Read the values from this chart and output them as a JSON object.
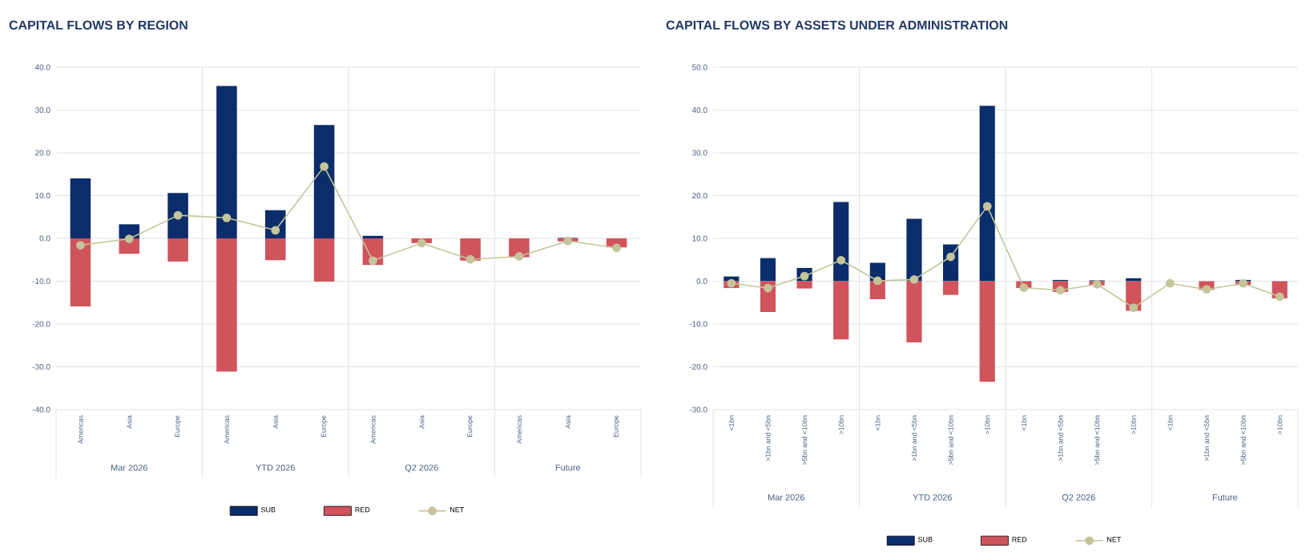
{
  "chart_data": [
    {
      "type": "bar",
      "title": "CAPITAL FLOWS BY REGION",
      "categories": [
        "Americas",
        "Asia",
        "Europe",
        "Americas",
        "Asia",
        "Europe",
        "Americas",
        "Asia",
        "Europe",
        "Americas",
        "Asia",
        "Europe"
      ],
      "series": [
        {
          "name": "SUB",
          "color": "#0b2d6b",
          "values": [
            14.0,
            3.3,
            10.6,
            35.6,
            6.6,
            26.5,
            0.6,
            null,
            null,
            null,
            0.1,
            null
          ]
        },
        {
          "name": "RED",
          "color": "#d0545c",
          "values": [
            -15.9,
            -3.6,
            -5.4,
            -31.1,
            -5.1,
            -10.1,
            -6.2,
            -1.1,
            -5.2,
            -4.4,
            -0.7,
            -2.1
          ]
        },
        {
          "name": "NET",
          "type": "line",
          "color": "#c5c49a",
          "marker": "circle",
          "values": [
            -1.6,
            -0.1,
            5.4,
            4.8,
            1.9,
            16.8,
            -5.2,
            -1.1,
            -4.9,
            -4.2,
            -0.6,
            -2.2
          ]
        }
      ],
      "stacked": true,
      "grid": "y",
      "legend": "bottom",
      "ylim": [
        -40,
        40
      ],
      "yticks": [
        {
          "value": -40,
          "label": "-40.0"
        },
        {
          "value": -30,
          "label": "-30.0"
        },
        {
          "value": -20,
          "label": "-20.0"
        },
        {
          "value": -10,
          "label": "-10.0"
        },
        {
          "value": 0,
          "label": "0.0"
        },
        {
          "value": 10,
          "label": "10.0"
        },
        {
          "value": 20,
          "label": "20.0"
        },
        {
          "value": 30,
          "label": "30.0"
        },
        {
          "value": 40,
          "label": "40.0"
        }
      ],
      "annotations": [
        "Mar 2026",
        "YTD 2026",
        "Q2 2026",
        "Future"
      ]
    },
    {
      "type": "bar",
      "title": "CAPITAL FLOWS BY ASSETS UNDER ADMINISTRATION",
      "categories": [
        "<1bn",
        ">1bn and <5bn",
        ">5bn and <10bn",
        ">10bn",
        "<1bn",
        ">1bn and <5bn",
        ">5bn and <10bn",
        ">10bn",
        "<1bn",
        ">1bn and <5bn",
        ">5bn and <10bn",
        ">10bn",
        "<1bn",
        ">1bn and <5bn",
        ">5bn and <10bn",
        ">10bn"
      ],
      "series": [
        {
          "name": "SUB",
          "color": "#0b2d6b",
          "values": [
            1.1,
            5.4,
            3.1,
            18.5,
            4.3,
            14.6,
            8.6,
            41.0,
            null,
            0.3,
            0.2,
            0.7,
            null,
            null,
            0.3,
            null
          ]
        },
        {
          "name": "RED",
          "color": "#d0545c",
          "values": [
            -1.6,
            -7.2,
            -1.7,
            -13.6,
            -4.2,
            -14.3,
            -3.2,
            -23.5,
            -1.6,
            -2.5,
            -1.0,
            -6.9,
            null,
            -2.0,
            -0.9,
            -4.0
          ]
        },
        {
          "name": "NET",
          "type": "line",
          "color": "#c5c49a",
          "marker": "circle",
          "values": [
            -0.5,
            -1.6,
            1.2,
            4.9,
            0.1,
            0.4,
            5.7,
            17.5,
            -1.5,
            -2.1,
            -0.7,
            -6.2,
            -0.5,
            -1.9,
            -0.5,
            -3.6
          ]
        }
      ],
      "stacked": true,
      "grid": "y",
      "legend": "bottom",
      "ylim": [
        -30,
        50
      ],
      "yticks": [
        {
          "value": -30,
          "label": "-30.0"
        },
        {
          "value": -20,
          "label": "-20.0"
        },
        {
          "value": -10,
          "label": "-10.0"
        },
        {
          "value": 0,
          "label": "0.0"
        },
        {
          "value": 10,
          "label": "10.0"
        },
        {
          "value": 20,
          "label": "20.0"
        },
        {
          "value": 30,
          "label": "30.0"
        },
        {
          "value": 40,
          "label": "40.0"
        },
        {
          "value": 50,
          "label": "50.0"
        }
      ],
      "annotations": [
        "Mar 2026",
        "YTD 2026",
        "Q2 2026",
        "Future"
      ]
    }
  ]
}
